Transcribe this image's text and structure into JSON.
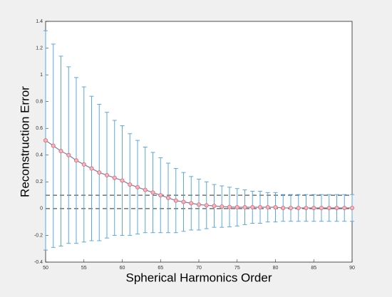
{
  "chart_data": {
    "type": "errorbar",
    "xlabel": "Spherical Harmonics Order",
    "ylabel": "Reconstruction Error",
    "x": [
      50,
      51,
      52,
      53,
      54,
      55,
      56,
      57,
      58,
      59,
      60,
      61,
      62,
      63,
      64,
      65,
      66,
      67,
      68,
      69,
      70,
      71,
      72,
      73,
      74,
      75,
      76,
      77,
      78,
      79,
      80,
      81,
      82,
      83,
      84,
      85,
      86,
      87,
      88,
      89,
      90
    ],
    "series": [
      {
        "color": "#6f7fae",
        "marker_color": "#e0606e",
        "errorbar_color": "#5aa9dc",
        "values": [
          0.51,
          0.47,
          0.43,
          0.4,
          0.36,
          0.33,
          0.3,
          0.27,
          0.25,
          0.23,
          0.21,
          0.18,
          0.16,
          0.14,
          0.12,
          0.1,
          0.08,
          0.06,
          0.05,
          0.04,
          0.03,
          0.025,
          0.02,
          0.015,
          0.012,
          0.01,
          0.01,
          0.01,
          0.01,
          0.01,
          0.01,
          0.005,
          0.005,
          0.005,
          0.005,
          0.005,
          0.005,
          0.005,
          0.005,
          0.005,
          0.005
        ],
        "errors": [
          0.82,
          0.76,
          0.71,
          0.66,
          0.62,
          0.58,
          0.54,
          0.51,
          0.47,
          0.43,
          0.41,
          0.38,
          0.35,
          0.32,
          0.3,
          0.28,
          0.26,
          0.24,
          0.22,
          0.2,
          0.19,
          0.175,
          0.16,
          0.155,
          0.148,
          0.14,
          0.13,
          0.12,
          0.12,
          0.11,
          0.11,
          0.1,
          0.1,
          0.1,
          0.1,
          0.1,
          0.1,
          0.1,
          0.1,
          0.1,
          0.1
        ]
      }
    ],
    "xlim": [
      50,
      90
    ],
    "ylim": [
      -0.4,
      1.4
    ],
    "xticks": [
      50,
      55,
      60,
      65,
      70,
      75,
      80,
      85,
      90
    ],
    "yticks": [
      -0.4,
      -0.2,
      0,
      0.2,
      0.4,
      0.6,
      0.8,
      1,
      1.2,
      1.4
    ],
    "hlines": [
      0.1,
      0
    ],
    "hline_color": "#555555"
  }
}
